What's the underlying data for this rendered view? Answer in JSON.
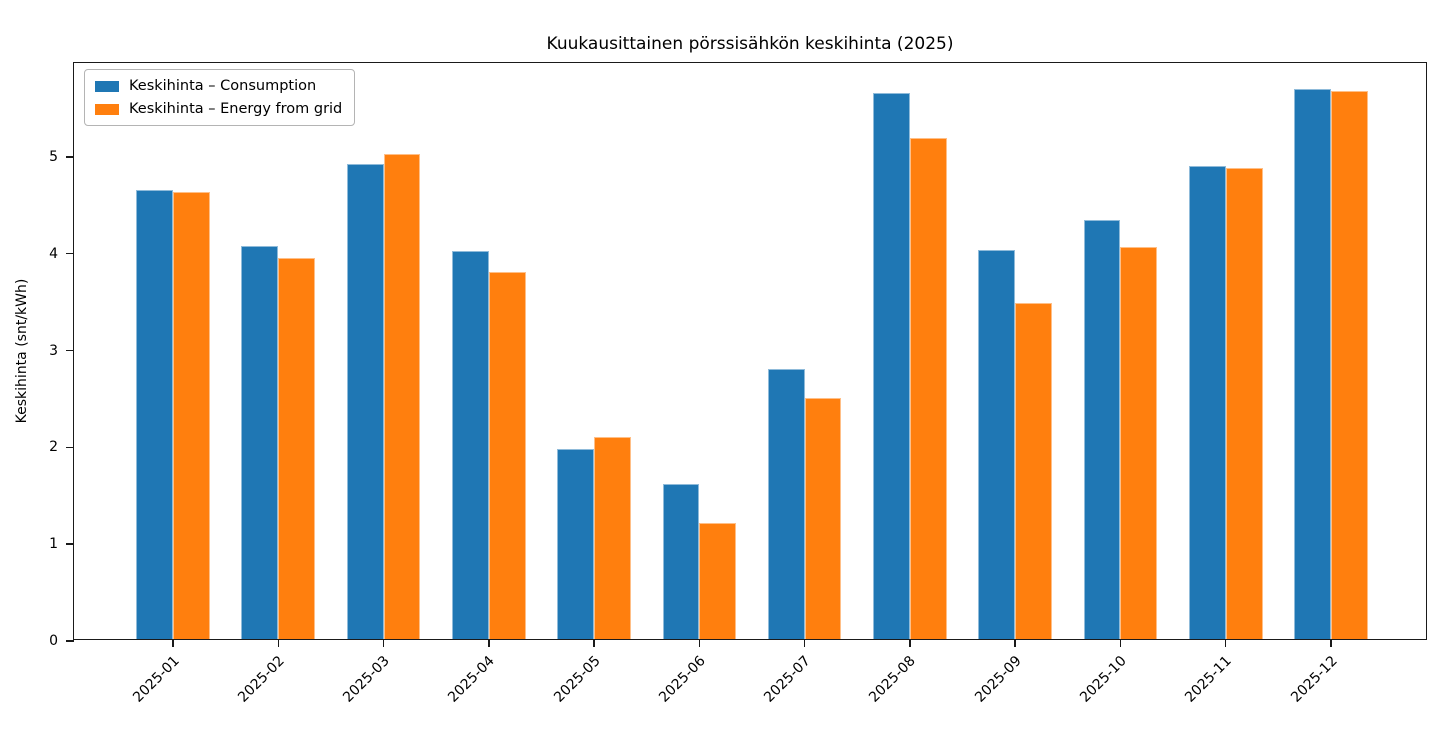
{
  "title": "Kuukausittainen pörssisähkön keskihinta (2025)",
  "chart_data": {
    "type": "bar",
    "title": "Kuukausittainen pörssisähkön keskihinta (2025)",
    "categories": [
      "2025-01",
      "2025-02",
      "2025-03",
      "2025-04",
      "2025-05",
      "2025-06",
      "2025-07",
      "2025-08",
      "2025-09",
      "2025-10",
      "2025-11",
      "2025-12"
    ],
    "series": [
      {
        "name": "Keskihinta – Consumption",
        "color": "#1f77b4",
        "values": [
          4.64,
          4.06,
          4.91,
          4.01,
          1.96,
          1.6,
          2.79,
          5.64,
          4.02,
          4.33,
          4.89,
          5.68
        ]
      },
      {
        "name": "Keskihinta – Energy from grid",
        "color": "#ff7f0e",
        "values": [
          4.62,
          3.94,
          5.01,
          3.79,
          2.09,
          1.2,
          2.49,
          5.18,
          3.47,
          4.05,
          4.86,
          5.66
        ]
      }
    ],
    "xlabel": "",
    "ylabel": "Keskihinta (snt/kWh)",
    "yticks": [
      0,
      1,
      2,
      3,
      4,
      5
    ],
    "ylim": [
      0,
      5.97
    ],
    "grid": false,
    "legend_position": "upper left",
    "bar_group_width_ratio": 0.7
  }
}
